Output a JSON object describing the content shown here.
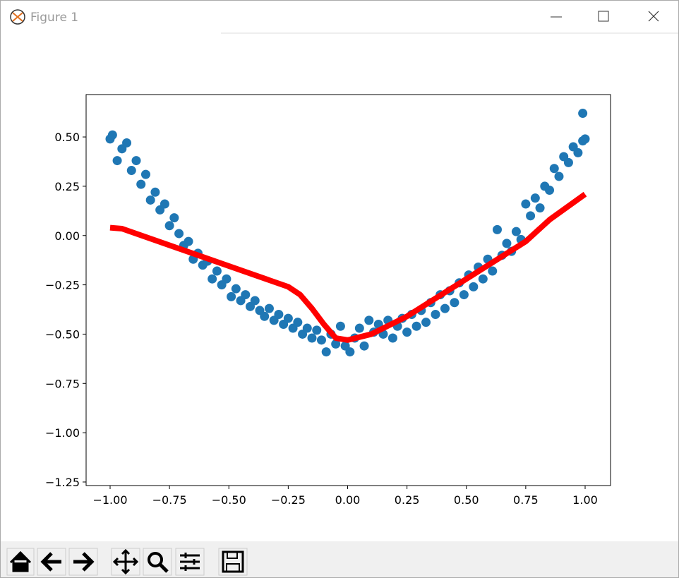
{
  "window": {
    "title": "Figure 1"
  },
  "chart_data": {
    "type": "scatter",
    "xlim": [
      -1.101,
      1.107
    ],
    "ylim": [
      -1.268,
      0.715
    ],
    "xticks": [
      {
        "value": -1,
        "label": "−1.00"
      },
      {
        "value": -0.75,
        "label": "−0.75"
      },
      {
        "value": -0.5,
        "label": "−0.50"
      },
      {
        "value": -0.25,
        "label": "−0.25"
      },
      {
        "value": 0,
        "label": "0.00"
      },
      {
        "value": 0.25,
        "label": "0.25"
      },
      {
        "value": 0.5,
        "label": "0.50"
      },
      {
        "value": 0.75,
        "label": "0.75"
      },
      {
        "value": 1,
        "label": "1.00"
      }
    ],
    "yticks": [
      {
        "value": 0.5,
        "label": "0.50"
      },
      {
        "value": 0.25,
        "label": "0.25"
      },
      {
        "value": 0,
        "label": "0.00"
      },
      {
        "value": -0.25,
        "label": "−0.25"
      },
      {
        "value": -0.5,
        "label": "−0.50"
      },
      {
        "value": -0.75,
        "label": "−0.75"
      },
      {
        "value": -1,
        "label": "−1.00"
      },
      {
        "value": -1.25,
        "label": "−1.25"
      }
    ],
    "series": [
      {
        "kind": "scatter",
        "color": "#1f77b4",
        "x": [
          -1.0,
          -0.99,
          -0.97,
          -0.95,
          -0.93,
          -0.91,
          -0.89,
          -0.87,
          -0.85,
          -0.83,
          -0.81,
          -0.79,
          -0.77,
          -0.75,
          -0.73,
          -0.71,
          -0.69,
          -0.67,
          -0.65,
          -0.63,
          -0.61,
          -0.59,
          -0.57,
          -0.55,
          -0.53,
          -0.51,
          -0.49,
          -0.47,
          -0.45,
          -0.43,
          -0.41,
          -0.39,
          -0.37,
          -0.35,
          -0.33,
          -0.31,
          -0.29,
          -0.27,
          -0.25,
          -0.23,
          -0.21,
          -0.19,
          -0.17,
          -0.15,
          -0.13,
          -0.11,
          -0.09,
          -0.07,
          -0.05,
          -0.03,
          -0.01,
          0.01,
          0.03,
          0.05,
          0.07,
          0.09,
          0.11,
          0.13,
          0.15,
          0.17,
          0.19,
          0.21,
          0.23,
          0.25,
          0.27,
          0.29,
          0.31,
          0.33,
          0.35,
          0.37,
          0.39,
          0.41,
          0.43,
          0.45,
          0.47,
          0.49,
          0.51,
          0.53,
          0.55,
          0.57,
          0.59,
          0.61,
          0.63,
          0.65,
          0.67,
          0.69,
          0.71,
          0.73,
          0.75,
          0.77,
          0.79,
          0.81,
          0.83,
          0.85,
          0.87,
          0.89,
          0.91,
          0.93,
          0.95,
          0.97,
          0.99,
          0.99,
          1.0
        ],
        "values": [
          0.49,
          0.51,
          0.38,
          0.44,
          0.47,
          0.33,
          0.38,
          0.26,
          0.31,
          0.18,
          0.22,
          0.13,
          0.16,
          0.05,
          0.09,
          0.01,
          -0.05,
          -0.03,
          -0.12,
          -0.09,
          -0.15,
          -0.13,
          -0.22,
          -0.18,
          -0.25,
          -0.22,
          -0.31,
          -0.27,
          -0.33,
          -0.3,
          -0.36,
          -0.33,
          -0.38,
          -0.41,
          -0.37,
          -0.43,
          -0.4,
          -0.45,
          -0.42,
          -0.47,
          -0.44,
          -0.5,
          -0.47,
          -0.52,
          -0.48,
          -0.53,
          -0.59,
          -0.5,
          -0.55,
          -0.46,
          -0.56,
          -0.59,
          -0.52,
          -0.47,
          -0.56,
          -0.43,
          -0.49,
          -0.45,
          -0.5,
          -0.43,
          -0.52,
          -0.46,
          -0.42,
          -0.49,
          -0.4,
          -0.46,
          -0.38,
          -0.44,
          -0.34,
          -0.4,
          -0.3,
          -0.37,
          -0.28,
          -0.34,
          -0.24,
          -0.3,
          -0.2,
          -0.26,
          -0.16,
          -0.22,
          -0.12,
          -0.18,
          0.03,
          -0.1,
          -0.04,
          -0.08,
          0.02,
          -0.02,
          0.16,
          0.1,
          0.19,
          0.14,
          0.25,
          0.23,
          0.34,
          0.3,
          0.4,
          0.37,
          0.45,
          0.42,
          0.48,
          0.62,
          0.49
        ]
      },
      {
        "kind": "line",
        "color": "#ff0000",
        "x": [
          -1.0,
          -0.95,
          -0.25,
          -0.2,
          -0.15,
          -0.1,
          -0.05,
          0,
          0.1,
          0.25,
          0.5,
          0.75,
          0.85,
          1.0
        ],
        "values": [
          0.04,
          0.035,
          -0.26,
          -0.3,
          -0.37,
          -0.45,
          -0.52,
          -0.53,
          -0.5,
          -0.41,
          -0.22,
          -0.03,
          0.08,
          0.21
        ]
      }
    ]
  }
}
